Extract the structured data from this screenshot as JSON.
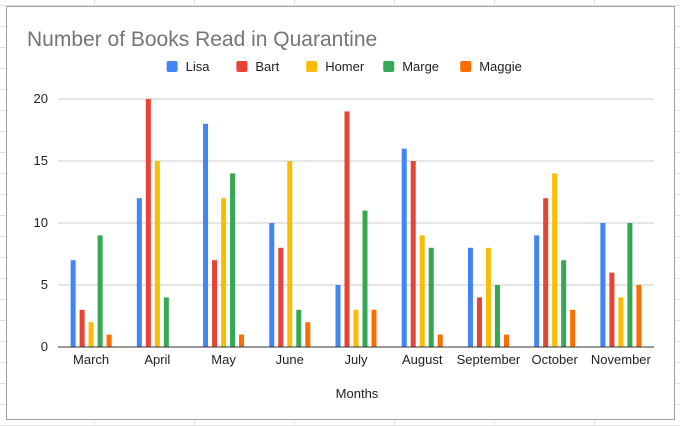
{
  "chart_data": {
    "type": "bar",
    "title": "Number of Books Read in Quarantine",
    "xlabel": "Months",
    "ylabel": "",
    "ylim": [
      0,
      20
    ],
    "yticks": [
      0,
      5,
      10,
      15,
      20
    ],
    "grid": true,
    "legend_position": "top",
    "categories": [
      "March",
      "April",
      "May",
      "June",
      "July",
      "August",
      "September",
      "October",
      "November"
    ],
    "series": [
      {
        "name": "Lisa",
        "color": "#4285f4",
        "values": [
          7,
          12,
          18,
          10,
          5,
          16,
          8,
          9,
          10
        ]
      },
      {
        "name": "Bart",
        "color": "#ea4335",
        "values": [
          3,
          20,
          7,
          8,
          19,
          15,
          4,
          12,
          6
        ]
      },
      {
        "name": "Homer",
        "color": "#fbbc04",
        "values": [
          2,
          15,
          12,
          15,
          3,
          9,
          8,
          14,
          4
        ]
      },
      {
        "name": "Marge",
        "color": "#34a853",
        "values": [
          9,
          4,
          14,
          3,
          11,
          8,
          5,
          7,
          10
        ]
      },
      {
        "name": "Maggie",
        "color": "#ff6d01",
        "values": [
          1,
          0,
          1,
          2,
          3,
          1,
          1,
          3,
          5
        ]
      }
    ]
  }
}
